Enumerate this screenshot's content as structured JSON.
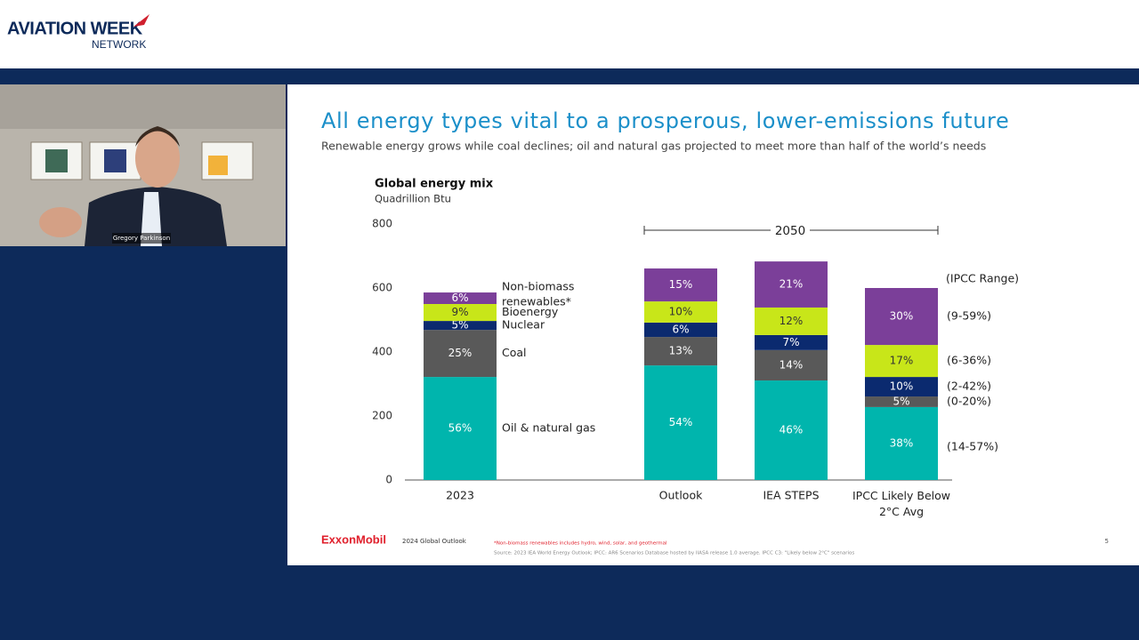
{
  "header": {
    "logo_main": "AVIATION WEEK",
    "logo_sub": "NETWORK"
  },
  "video": {
    "speaker": "Gregory Parkinson"
  },
  "slide": {
    "title": "All energy types vital to a prosperous, lower-emissions future",
    "subtitle": "Renewable energy grows while coal declines; oil and natural gas projected to meet more than half of the world’s needs",
    "brand": "ExxonMobil",
    "report": "2024 Global Outlook",
    "footnote": "*Non-biomass renewables includes hydro, wind, solar, and geothermal",
    "source": "Source: 2023 IEA World Energy Outlook; IPCC: AR6 Scenarios Database hosted by IIASA release 1.0 average. IPCC C3: \"Likely below 2°C\" scenarios",
    "page": "5"
  },
  "chart_data": {
    "type": "bar",
    "stacked": true,
    "title": "Global energy mix",
    "subtitle": "Quadrillion Btu",
    "categories": [
      "2023",
      "Outlook",
      "IEA STEPS",
      "IPCC Likely Below 2°C Avg"
    ],
    "annotation": "2050",
    "range_title": "(IPCC Range)",
    "series": [
      {
        "name": "Oil & natural gas",
        "color": "#00b5ad",
        "values": [
          322,
          358,
          311,
          228
        ],
        "share_labels": [
          "56%",
          "54%",
          "46%",
          "38%"
        ],
        "ipcc_range": "(14-57%)"
      },
      {
        "name": "Coal",
        "color": "#595959",
        "values": [
          147,
          89,
          95,
          33
        ],
        "share_labels": [
          "25%",
          "13%",
          "14%",
          "5%"
        ],
        "ipcc_range": "(0-20%)"
      },
      {
        "name": "Nuclear",
        "color": "#0b2a6f",
        "values": [
          28,
          45,
          47,
          61
        ],
        "share_labels": [
          "5%",
          "6%",
          "7%",
          "10%"
        ],
        "ipcc_range": "(2-42%)"
      },
      {
        "name": "Bioenergy",
        "color": "#c8e619",
        "values": [
          53,
          66,
          86,
          100
        ],
        "share_labels": [
          "9%",
          "10%",
          "12%",
          "17%"
        ],
        "ipcc_range": "(6-36%)"
      },
      {
        "name": "Non-biomass renewables*",
        "color": "#7b3f99",
        "values": [
          36,
          103,
          144,
          178
        ],
        "share_labels": [
          "6%",
          "15%",
          "21%",
          "30%"
        ],
        "ipcc_range": "(9-59%)"
      }
    ],
    "ylim": [
      0,
      800
    ],
    "yticks": [
      0,
      200,
      400,
      600,
      800
    ]
  }
}
